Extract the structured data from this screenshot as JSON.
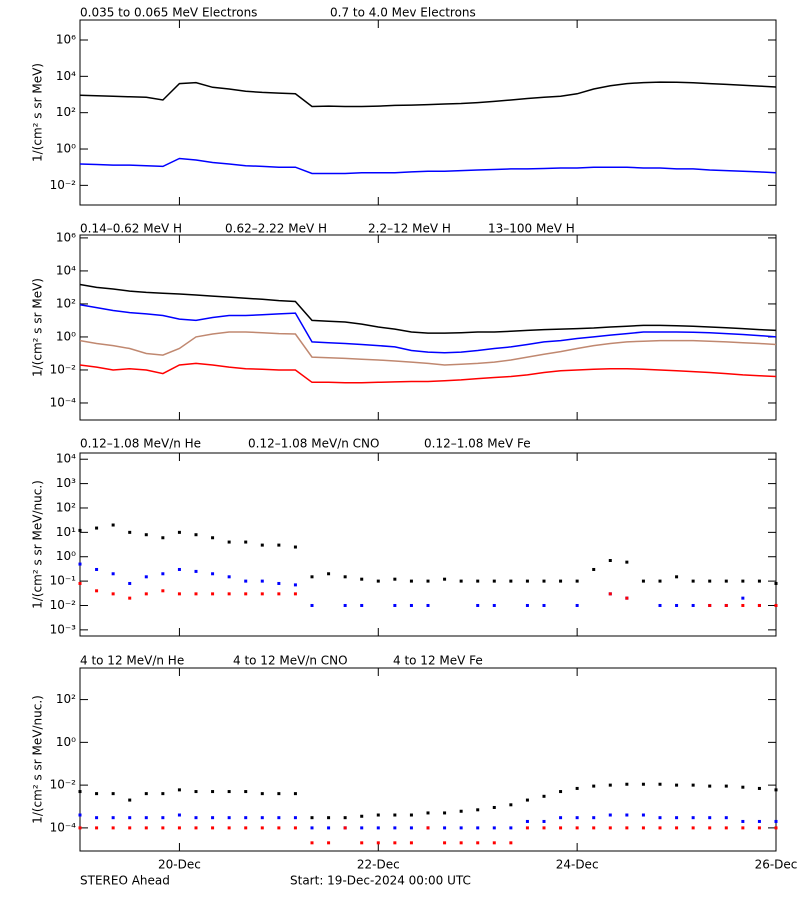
{
  "chart_data": [
    {
      "type": "line",
      "log_y": true,
      "ylabel": "1/(cm² s sr MeV)",
      "x": [
        0,
        4,
        8,
        12,
        16,
        20,
        24,
        28,
        32,
        36,
        40,
        44,
        48,
        52,
        56,
        60,
        64,
        68,
        72,
        76,
        80,
        84,
        88,
        92,
        96,
        100,
        104,
        108,
        112,
        116,
        120,
        124,
        128,
        132,
        136,
        140,
        144,
        148,
        152,
        156,
        160,
        164,
        168
      ],
      "xlim": [
        0,
        168
      ],
      "xticks": [
        24,
        72,
        120,
        168
      ],
      "ylim": [
        0.00083,
        12600000
      ],
      "yticks": [
        {
          "value": 0.01,
          "label": "10⁻²"
        },
        {
          "value": 1,
          "label": "10⁰"
        },
        {
          "value": 100,
          "label": "10²"
        },
        {
          "value": 10000,
          "label": "10⁴"
        },
        {
          "value": 1000000,
          "label": "10⁶"
        }
      ],
      "series": [
        {
          "name": "0.035 to 0.065 MeV Electrons",
          "color": "#000000",
          "values": [
            900,
            850,
            800,
            750,
            700,
            500,
            4000,
            4500,
            2500,
            2000,
            1500,
            1300,
            1200,
            1100,
            220,
            230,
            220,
            220,
            230,
            250,
            260,
            280,
            300,
            320,
            360,
            420,
            500,
            600,
            700,
            800,
            1100,
            2000,
            3000,
            4000,
            4500,
            4800,
            4700,
            4400,
            4000,
            3600,
            3200,
            2900,
            2600
          ]
        },
        {
          "name": "0.7 to 4.0 Mev Electrons",
          "color": "#0000ff",
          "values": [
            0.15,
            0.14,
            0.13,
            0.13,
            0.12,
            0.11,
            0.3,
            0.25,
            0.18,
            0.15,
            0.12,
            0.11,
            0.1,
            0.1,
            0.045,
            0.045,
            0.045,
            0.05,
            0.05,
            0.05,
            0.055,
            0.06,
            0.06,
            0.065,
            0.07,
            0.075,
            0.08,
            0.08,
            0.085,
            0.09,
            0.09,
            0.1,
            0.1,
            0.1,
            0.09,
            0.09,
            0.08,
            0.08,
            0.07,
            0.065,
            0.06,
            0.055,
            0.05
          ]
        }
      ]
    },
    {
      "type": "line",
      "log_y": true,
      "ylabel": "1/(cm² s sr MeV)",
      "x": [
        0,
        4,
        8,
        12,
        16,
        20,
        24,
        28,
        32,
        36,
        40,
        44,
        48,
        52,
        56,
        60,
        64,
        68,
        72,
        76,
        80,
        84,
        88,
        92,
        96,
        100,
        104,
        108,
        112,
        116,
        120,
        124,
        128,
        132,
        136,
        140,
        144,
        148,
        152,
        156,
        160,
        164,
        168
      ],
      "xlim": [
        0,
        168
      ],
      "xticks": [
        24,
        72,
        120,
        168
      ],
      "ylim": [
        9.3e-06,
        1500000
      ],
      "yticks": [
        {
          "value": 0.0001,
          "label": "10⁻⁴"
        },
        {
          "value": 0.01,
          "label": "10⁻²"
        },
        {
          "value": 1,
          "label": "10⁰"
        },
        {
          "value": 100,
          "label": "10²"
        },
        {
          "value": 10000,
          "label": "10⁴"
        },
        {
          "value": 1000000,
          "label": "10⁶"
        }
      ],
      "series": [
        {
          "name": "0.14–0.62 MeV H",
          "color": "#000000",
          "values": [
            1500,
            1000,
            800,
            600,
            500,
            450,
            400,
            350,
            300,
            260,
            220,
            190,
            160,
            140,
            10,
            9,
            8,
            6,
            4,
            3,
            2,
            1.7,
            1.7,
            1.8,
            2,
            2,
            2.2,
            2.5,
            2.8,
            3,
            3.2,
            3.5,
            4,
            4.5,
            5,
            5,
            4.8,
            4.5,
            4,
            3.6,
            3.2,
            2.8,
            2.5
          ]
        },
        {
          "name": "0.62–2.22 MeV H",
          "color": "#0000ff",
          "values": [
            90,
            60,
            40,
            30,
            25,
            20,
            12,
            10,
            15,
            20,
            20,
            22,
            25,
            28,
            0.5,
            0.45,
            0.4,
            0.35,
            0.3,
            0.25,
            0.15,
            0.12,
            0.11,
            0.12,
            0.15,
            0.2,
            0.25,
            0.35,
            0.5,
            0.6,
            0.8,
            1,
            1.3,
            1.6,
            2,
            2,
            2,
            1.9,
            1.8,
            1.6,
            1.4,
            1.2,
            1
          ]
        },
        {
          "name": "2.2–12 MeV H",
          "color": "#c08870",
          "values": [
            0.6,
            0.4,
            0.3,
            0.2,
            0.1,
            0.08,
            0.2,
            1,
            1.5,
            2,
            2,
            1.8,
            1.6,
            1.5,
            0.06,
            0.055,
            0.05,
            0.045,
            0.04,
            0.035,
            0.03,
            0.025,
            0.02,
            0.022,
            0.025,
            0.03,
            0.04,
            0.06,
            0.09,
            0.13,
            0.2,
            0.3,
            0.4,
            0.5,
            0.55,
            0.6,
            0.6,
            0.6,
            0.55,
            0.5,
            0.45,
            0.4,
            0.35
          ]
        },
        {
          "name": "13–100 MeV H",
          "color": "#ff0000",
          "values": [
            0.02,
            0.015,
            0.01,
            0.012,
            0.01,
            0.006,
            0.02,
            0.025,
            0.02,
            0.015,
            0.012,
            0.011,
            0.01,
            0.01,
            0.0018,
            0.0018,
            0.0017,
            0.0017,
            0.0018,
            0.0019,
            0.002,
            0.002,
            0.0022,
            0.0025,
            0.003,
            0.0035,
            0.004,
            0.005,
            0.007,
            0.009,
            0.01,
            0.011,
            0.012,
            0.012,
            0.011,
            0.01,
            0.009,
            0.008,
            0.007,
            0.006,
            0.005,
            0.0045,
            0.004
          ]
        }
      ]
    },
    {
      "type": "scatter",
      "log_y": true,
      "ylabel": "1/(cm² s sr MeV/nuc.)",
      "x": [
        0,
        4,
        8,
        12,
        16,
        20,
        24,
        28,
        32,
        36,
        40,
        44,
        48,
        52,
        56,
        60,
        64,
        68,
        72,
        76,
        80,
        84,
        88,
        92,
        96,
        100,
        104,
        108,
        112,
        116,
        120,
        124,
        128,
        132,
        136,
        140,
        144,
        148,
        152,
        156,
        160,
        164,
        168
      ],
      "xlim": [
        0,
        168
      ],
      "xticks": [
        24,
        72,
        120,
        168
      ],
      "ylim": [
        0.00056,
        18000
      ],
      "yticks": [
        {
          "value": 0.001,
          "label": "10⁻³"
        },
        {
          "value": 0.01,
          "label": "10⁻²"
        },
        {
          "value": 0.1,
          "label": "10⁻¹"
        },
        {
          "value": 1,
          "label": "10⁰"
        },
        {
          "value": 10,
          "label": "10¹"
        },
        {
          "value": 100,
          "label": "10²"
        },
        {
          "value": 1000,
          "label": "10³"
        },
        {
          "value": 10000,
          "label": "10⁴"
        }
      ],
      "series": [
        {
          "name": "0.12–1.08 MeV/n He",
          "color": "#000000",
          "values": [
            12,
            15,
            20,
            10,
            8,
            6,
            10,
            8,
            6,
            4,
            4,
            3,
            3,
            2.5,
            0.15,
            0.2,
            0.15,
            0.12,
            0.1,
            0.12,
            0.1,
            0.1,
            0.12,
            0.1,
            0.1,
            0.1,
            0.1,
            0.1,
            0.1,
            0.1,
            0.1,
            0.3,
            0.7,
            0.6,
            0.1,
            0.1,
            0.15,
            0.1,
            0.1,
            0.1,
            0.1,
            0.1,
            0.08
          ]
        },
        {
          "name": "0.12–1.08 MeV/n CNO",
          "color": "#0000ff",
          "values": [
            0.5,
            0.3,
            0.2,
            0.08,
            0.15,
            0.2,
            0.3,
            0.25,
            0.2,
            0.15,
            0.1,
            0.1,
            0.08,
            0.07,
            0.01,
            null,
            0.01,
            0.01,
            null,
            0.01,
            0.01,
            0.01,
            null,
            null,
            0.01,
            0.01,
            null,
            0.01,
            0.01,
            null,
            0.01,
            null,
            0.03,
            0.02,
            null,
            0.01,
            0.01,
            0.01,
            0.01,
            0.01,
            0.02,
            0.01,
            0.01
          ]
        },
        {
          "name": "0.12–1.08 MeV Fe",
          "color": "#ff0000",
          "values": [
            0.08,
            0.04,
            0.03,
            0.02,
            0.03,
            0.04,
            0.03,
            0.03,
            0.03,
            0.03,
            0.03,
            0.03,
            0.03,
            0.03,
            null,
            null,
            null,
            null,
            null,
            null,
            null,
            null,
            null,
            null,
            null,
            null,
            null,
            null,
            null,
            null,
            null,
            null,
            0.03,
            0.02,
            null,
            null,
            null,
            null,
            0.01,
            0.01,
            0.01,
            0.01,
            0.01
          ]
        }
      ]
    },
    {
      "type": "scatter",
      "log_y": true,
      "ylabel": "1/(cm² s sr MeV/nuc.)",
      "x": [
        0,
        4,
        8,
        12,
        16,
        20,
        24,
        28,
        32,
        36,
        40,
        44,
        48,
        52,
        56,
        60,
        64,
        68,
        72,
        76,
        80,
        84,
        88,
        92,
        96,
        100,
        104,
        108,
        112,
        116,
        120,
        124,
        128,
        132,
        136,
        140,
        144,
        148,
        152,
        156,
        160,
        164,
        168
      ],
      "xlim": [
        0,
        168
      ],
      "xticks": [
        {
          "value": 24,
          "label": "20-Dec"
        },
        {
          "value": 72,
          "label": "22-Dec"
        },
        {
          "value": 120,
          "label": "24-Dec"
        },
        {
          "value": 168,
          "label": "26-Dec"
        }
      ],
      "ylim": [
        8.3e-06,
        3000
      ],
      "yticks": [
        {
          "value": 0.0001,
          "label": "10⁻⁴"
        },
        {
          "value": 0.01,
          "label": "10⁻²"
        },
        {
          "value": 1,
          "label": "10⁰"
        },
        {
          "value": 100,
          "label": "10²"
        }
      ],
      "series": [
        {
          "name": "4 to 12 MeV/n He",
          "color": "#000000",
          "values": [
            0.005,
            0.004,
            0.004,
            0.002,
            0.004,
            0.004,
            0.006,
            0.005,
            0.005,
            0.005,
            0.005,
            0.004,
            0.004,
            0.004,
            0.0003,
            0.0003,
            0.0003,
            0.00035,
            0.0004,
            0.0004,
            0.0004,
            0.0005,
            0.0005,
            0.0006,
            0.0007,
            0.0009,
            0.0012,
            0.002,
            0.003,
            0.005,
            0.007,
            0.009,
            0.01,
            0.011,
            0.011,
            0.011,
            0.01,
            0.01,
            0.009,
            0.009,
            0.008,
            0.007,
            0.006
          ]
        },
        {
          "name": "4 to 12 MeV/n CNO",
          "color": "#0000ff",
          "values": [
            0.0004,
            0.0003,
            0.0003,
            0.0003,
            0.0003,
            0.0003,
            0.0004,
            0.0003,
            0.0003,
            0.0003,
            0.0003,
            0.0003,
            0.0003,
            0.0003,
            0.0001,
            0.0001,
            0.0001,
            0.0001,
            0.0001,
            0.0001,
            0.0001,
            0.0001,
            0.0001,
            0.0001,
            0.0001,
            0.0001,
            0.0001,
            0.0002,
            0.0002,
            0.0003,
            0.0003,
            0.0003,
            0.0004,
            0.0004,
            0.0004,
            0.0003,
            0.0003,
            0.0003,
            0.0003,
            0.0003,
            0.0002,
            0.0002,
            0.0002
          ]
        },
        {
          "name": "4 to 12 MeV Fe",
          "color": "#ff0000",
          "values": [
            0.0001,
            0.0001,
            0.0001,
            0.0001,
            0.0001,
            0.0001,
            0.0001,
            0.0001,
            0.0001,
            0.0001,
            0.0001,
            0.0001,
            0.0001,
            0.0001,
            2e-05,
            2e-05,
            0.0001,
            2e-05,
            2e-05,
            2e-05,
            2e-05,
            0.0001,
            2e-05,
            2e-05,
            2e-05,
            2e-05,
            2e-05,
            0.0001,
            0.0001,
            0.0001,
            0.0001,
            0.0001,
            0.0001,
            0.0001,
            0.0001,
            0.0001,
            0.0001,
            0.0001,
            0.0001,
            0.0001,
            0.0001,
            0.0001,
            0.0001
          ]
        }
      ]
    }
  ],
  "footer": {
    "spacecraft": "STEREO Ahead",
    "start": "Start: 19-Dec-2024 00:00 UTC"
  }
}
